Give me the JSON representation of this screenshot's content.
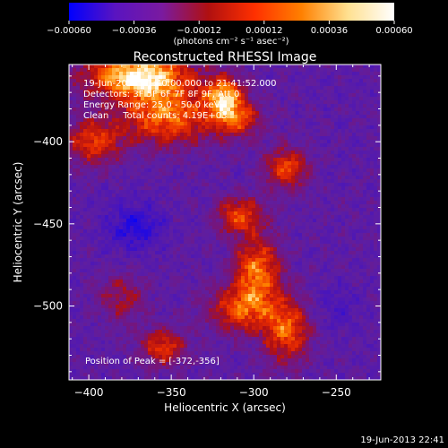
{
  "chart_data": {
    "type": "heatmap",
    "title": "Reconstructed RHESSI Image",
    "xlabel": "Heliocentric X (arcsec)",
    "ylabel": "Heliocentric Y (arcsec)",
    "xlim": [
      -412,
      -223
    ],
    "ylim": [
      -545,
      -353
    ],
    "x_ticks": [
      -400,
      -350,
      -300,
      -250
    ],
    "y_ticks": [
      -400,
      -450,
      -500
    ],
    "x_tick_labels": [
      "−400",
      "−350",
      "−300",
      "−250"
    ],
    "y_tick_labels": [
      "−400",
      "−450",
      "−500"
    ],
    "colorbar": {
      "range": [
        -0.0006,
        0.0006
      ],
      "ticks": [
        -0.0006,
        -0.00036,
        -0.00012,
        0.00012,
        0.00036,
        0.0006
      ],
      "tick_labels": [
        "−0.00060",
        "−0.00036",
        "−0.00012",
        "0.00012",
        "0.00036",
        "0.00060"
      ],
      "units_label": "(photons cm⁻² s⁻¹ asec⁻²)",
      "colors": [
        "#0000ff",
        "#5a14c0",
        "#7a1aa0",
        "#b01010",
        "#ff3000",
        "#ff8000",
        "#ffe090",
        "#ffffff"
      ]
    },
    "info_lines": [
      "19-Jun-2013 21:40:00.000 to 21:41:52.000",
      "Detectors: 3F 5F 6F 7F 8F 9F, Att 0",
      "Energy Range: 25.0 - 50.0 keV",
      "Clean     Total counts: 4.19E+03"
    ],
    "peak_label": "Position of Peak = [-372,-356]",
    "peak": {
      "x": -372,
      "y": -356
    },
    "emission_sources": [
      {
        "x": -370,
        "y": -360,
        "sx": 22,
        "sy": 10,
        "amp": 1.0
      },
      {
        "x": -352,
        "y": -385,
        "sx": 20,
        "sy": 12,
        "amp": 0.7
      },
      {
        "x": -318,
        "y": -372,
        "sx": 8,
        "sy": 9,
        "amp": 0.75
      },
      {
        "x": -310,
        "y": -386,
        "sx": 10,
        "sy": 8,
        "amp": 0.55
      },
      {
        "x": -397,
        "y": -400,
        "sx": 12,
        "sy": 10,
        "amp": 0.55
      },
      {
        "x": -280,
        "y": -416,
        "sx": 9,
        "sy": 9,
        "amp": 0.6
      },
      {
        "x": -308,
        "y": -445,
        "sx": 10,
        "sy": 8,
        "amp": 0.6
      },
      {
        "x": -298,
        "y": -478,
        "sx": 10,
        "sy": 14,
        "amp": 0.7
      },
      {
        "x": -308,
        "y": -502,
        "sx": 14,
        "sy": 10,
        "amp": 0.6
      },
      {
        "x": -280,
        "y": -515,
        "sx": 10,
        "sy": 14,
        "amp": 0.65
      },
      {
        "x": -355,
        "y": -525,
        "sx": 10,
        "sy": 8,
        "amp": 0.55
      },
      {
        "x": -380,
        "y": -495,
        "sx": 10,
        "sy": 10,
        "amp": 0.35
      }
    ],
    "negative_sources": [
      {
        "x": -372,
        "y": -452,
        "sx": 12,
        "sy": 10,
        "amp": 0.6
      },
      {
        "x": -250,
        "y": -500,
        "sx": 10,
        "sy": 10,
        "amp": 0.25
      }
    ]
  },
  "footer": {
    "timestamp": "19-Jun-2013 22:41"
  }
}
